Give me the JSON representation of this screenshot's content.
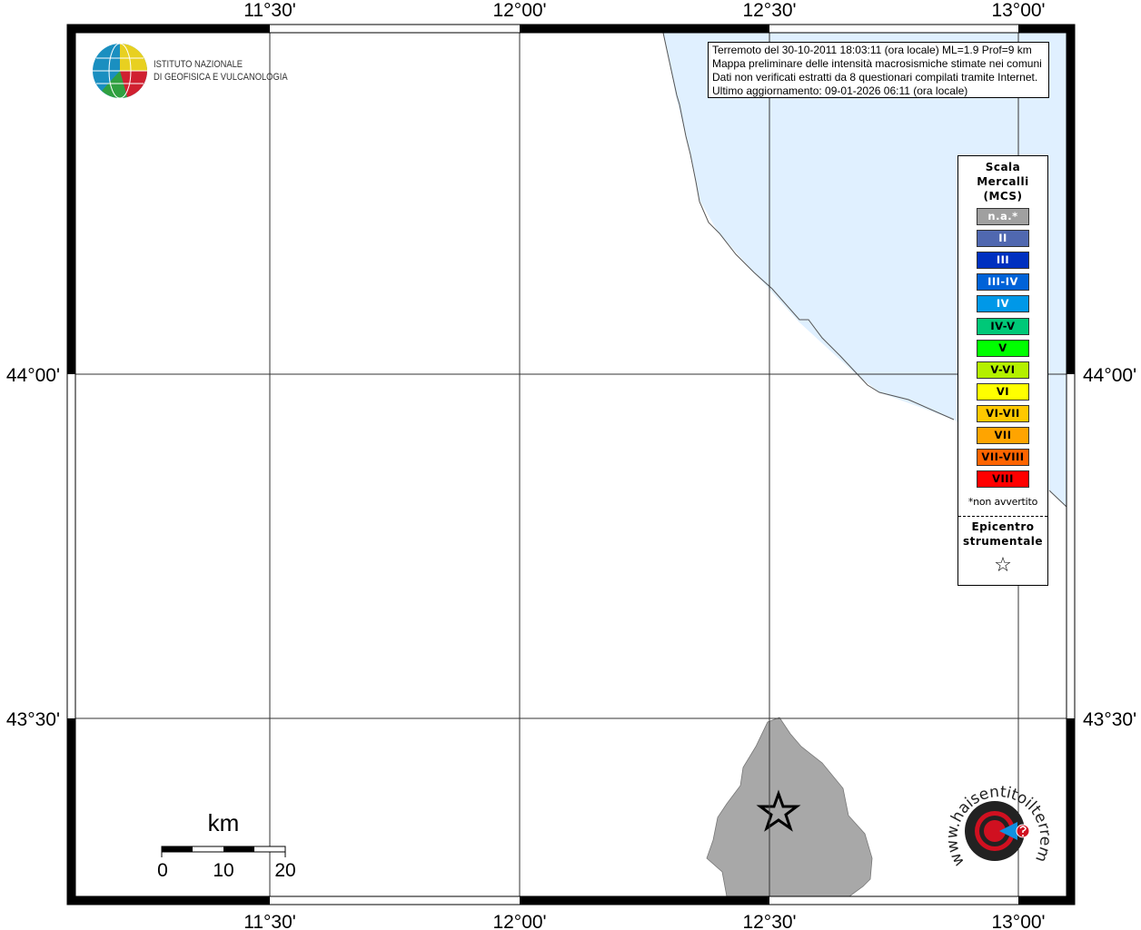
{
  "map": {
    "lon_ticks": [
      "11°30'",
      "12°00'",
      "12°30'",
      "13°00'"
    ],
    "lat_ticks": [
      "44°00'",
      "43°30'"
    ],
    "sea_color": "#e0f0ff",
    "land_color": "#ffffff",
    "affected_area_color": "#a8a8a8"
  },
  "logo": {
    "line1": "ISTITUTO NAZIONALE",
    "line2": "DI GEOFISICA E VULCANOLOGIA"
  },
  "info": {
    "line1": "Terremoto del 30-10-2011 18:03:11 (ora locale) ML=1.9 Prof=9 km",
    "line2": "Mappa preliminare delle intensità macrosismiche stimate nei comuni",
    "line3": "Dati non verificati estratti da 8 questionari compilati tramite Internet.",
    "line4": "Ultimo aggiornamento: 09-01-2026 06:11 (ora locale)"
  },
  "legend": {
    "title1": "Scala",
    "title2": "Mercalli",
    "title3": "(MCS)",
    "items": [
      {
        "label": "n.a.*",
        "color": "#a0a0a0",
        "text": "#ffffff"
      },
      {
        "label": "II",
        "color": "#5068b0",
        "text": "#ffffff"
      },
      {
        "label": "III",
        "color": "#0030c0",
        "text": "#ffffff"
      },
      {
        "label": "III-IV",
        "color": "#0062d8",
        "text": "#ffffff"
      },
      {
        "label": "IV",
        "color": "#0098e8",
        "text": "#ffffff"
      },
      {
        "label": "IV-V",
        "color": "#00c878",
        "text": "#000000"
      },
      {
        "label": "V",
        "color": "#00ff00",
        "text": "#000000"
      },
      {
        "label": "V-VI",
        "color": "#b4f000",
        "text": "#000000"
      },
      {
        "label": "VI",
        "color": "#ffff00",
        "text": "#000000"
      },
      {
        "label": "VI-VII",
        "color": "#ffc800",
        "text": "#000000"
      },
      {
        "label": "VII",
        "color": "#ffa400",
        "text": "#000000"
      },
      {
        "label": "VII-VIII",
        "color": "#ff6400",
        "text": "#000000"
      },
      {
        "label": "VIII",
        "color": "#ff0000",
        "text": "#000000"
      }
    ],
    "note": "*non avvertito",
    "epi1": "Epicentro",
    "epi2": "strumentale",
    "epi_symbol": "☆"
  },
  "scale": {
    "unit": "km",
    "labels": [
      "0",
      "10",
      "20"
    ]
  },
  "hsit_logo": {
    "text": "www.haisentitoilterremoto.it"
  }
}
